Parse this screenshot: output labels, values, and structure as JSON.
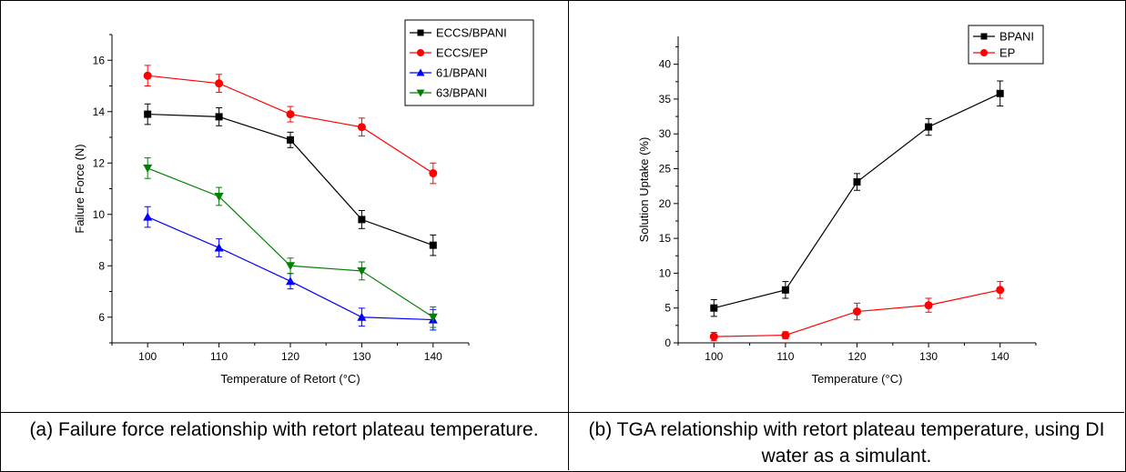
{
  "captions": {
    "a": "(a) Failure force relationship with retort plateau temperature.",
    "b": "(b) TGA relationship with retort plateau temperature, using DI water as a simulant."
  },
  "chart_data": [
    {
      "type": "line",
      "title": "",
      "xlabel": "Temperature of Retort (°C)",
      "ylabel": "Failure Force (N)",
      "x": [
        100,
        110,
        120,
        130,
        140
      ],
      "xlim": [
        95,
        145
      ],
      "ylim": [
        5,
        17
      ],
      "xticks": [
        100,
        110,
        120,
        130,
        140
      ],
      "yticks": [
        6,
        8,
        10,
        12,
        14,
        16
      ],
      "legend_position": "top-right",
      "series": [
        {
          "name": "ECCS/BPANI",
          "values": [
            13.9,
            13.8,
            12.9,
            9.8,
            8.8
          ],
          "errors": [
            0.4,
            0.35,
            0.3,
            0.35,
            0.4
          ],
          "color": "#000000",
          "marker": "square"
        },
        {
          "name": "ECCS/EP",
          "values": [
            15.4,
            15.1,
            13.9,
            13.4,
            11.6
          ],
          "errors": [
            0.4,
            0.35,
            0.3,
            0.35,
            0.4
          ],
          "color": "#ff0000",
          "marker": "circle"
        },
        {
          "name": "61/BPANI",
          "values": [
            9.9,
            8.7,
            7.4,
            6.0,
            5.9
          ],
          "errors": [
            0.4,
            0.35,
            0.3,
            0.35,
            0.4
          ],
          "color": "#0000ff",
          "marker": "triangle-up"
        },
        {
          "name": "63/BPANI",
          "values": [
            11.8,
            10.7,
            8.0,
            7.8,
            6.0
          ],
          "errors": [
            0.4,
            0.35,
            0.3,
            0.35,
            0.4
          ],
          "color": "#008000",
          "marker": "triangle-down"
        }
      ]
    },
    {
      "type": "line",
      "title": "",
      "xlabel": "Temperature (°C)",
      "ylabel": "Solution Uptake (%)",
      "x": [
        100,
        110,
        120,
        130,
        140
      ],
      "xlim": [
        95,
        145
      ],
      "ylim": [
        0,
        44
      ],
      "xticks": [
        100,
        110,
        120,
        130,
        140
      ],
      "yticks": [
        0,
        5,
        10,
        15,
        20,
        25,
        30,
        35,
        40
      ],
      "legend_position": "top-right",
      "series": [
        {
          "name": "BPANI",
          "values": [
            5.0,
            7.6,
            23.1,
            31.0,
            35.8
          ],
          "errors": [
            1.2,
            1.2,
            1.2,
            1.2,
            1.8
          ],
          "color": "#000000",
          "marker": "square"
        },
        {
          "name": "EP",
          "values": [
            0.9,
            1.1,
            4.5,
            5.4,
            7.6
          ],
          "errors": [
            0.6,
            0.5,
            1.2,
            1.0,
            1.2
          ],
          "color": "#ff0000",
          "marker": "circle"
        }
      ]
    }
  ]
}
